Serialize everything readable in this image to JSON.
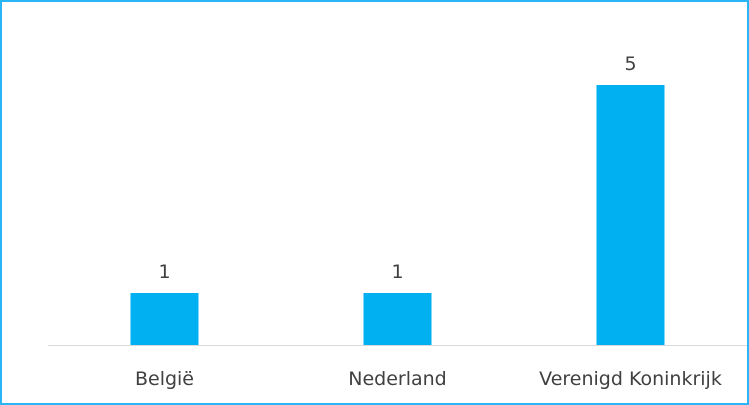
{
  "chart_data": {
    "type": "bar",
    "categories": [
      "België",
      "Nederland",
      "Verenigd Koninkrijk"
    ],
    "values": [
      1,
      1,
      5
    ],
    "data_labels": [
      "1",
      "1",
      "5"
    ],
    "ylim": [
      0,
      5
    ],
    "grid": false,
    "legend": "none",
    "colors": {
      "bar": "#00b0f0",
      "border": "#29b6f6",
      "axis": "#d9d9d9",
      "text": "#404040"
    }
  }
}
